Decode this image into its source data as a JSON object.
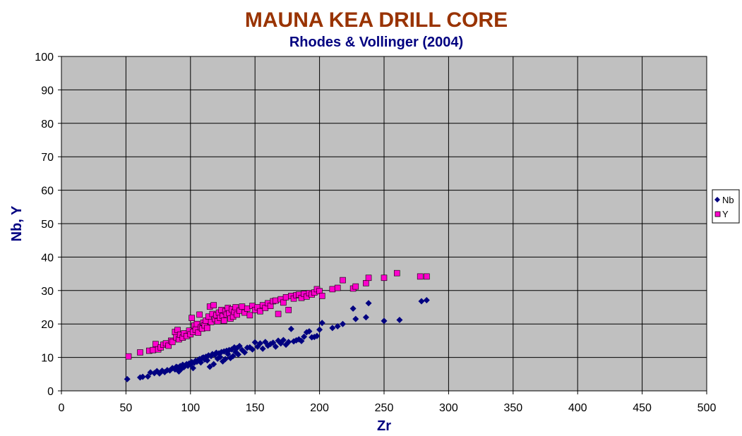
{
  "chart_data": {
    "type": "scatter",
    "title": "MAUNA KEA DRILL CORE",
    "subtitle": "Rhodes & Vollinger (2004)",
    "xlabel": "Zr",
    "ylabel": "Nb, Y",
    "xlim": [
      0,
      500
    ],
    "ylim": [
      0,
      100
    ],
    "x_ticks": [
      "0",
      "50",
      "100",
      "150",
      "200",
      "250",
      "300",
      "350",
      "400",
      "450",
      "500"
    ],
    "y_ticks": [
      "0",
      "10",
      "20",
      "30",
      "40",
      "50",
      "60",
      "70",
      "80",
      "90",
      "100"
    ],
    "grid": true,
    "legend_position": "right",
    "colors": {
      "title": "#993300",
      "subtitle": "#000080",
      "axis_title": "#000080",
      "plot_bg": "#c0c0c0",
      "grid": "#000000"
    },
    "series": [
      {
        "name": "Nb",
        "marker": "diamond",
        "color": "#000080",
        "points": [
          [
            51,
            3.5
          ],
          [
            61,
            4
          ],
          [
            63,
            4.2
          ],
          [
            67,
            4.3
          ],
          [
            69,
            5.5
          ],
          [
            72,
            5.3
          ],
          [
            74,
            5.9
          ],
          [
            76,
            5.2
          ],
          [
            78,
            6
          ],
          [
            80,
            5.6
          ],
          [
            82,
            6.2
          ],
          [
            84,
            6.1
          ],
          [
            86,
            6.8
          ],
          [
            88,
            6.4
          ],
          [
            89,
            7.2
          ],
          [
            90,
            7
          ],
          [
            91,
            5.8
          ],
          [
            92,
            7.4
          ],
          [
            93,
            6.6
          ],
          [
            94,
            7.8
          ],
          [
            95,
            7.1
          ],
          [
            96,
            7.6
          ],
          [
            97,
            8
          ],
          [
            98,
            7.5
          ],
          [
            99,
            8.2
          ],
          [
            100,
            7.9
          ],
          [
            101,
            8.6
          ],
          [
            102,
            6.8
          ],
          [
            103,
            8.4
          ],
          [
            104,
            9
          ],
          [
            105,
            8.7
          ],
          [
            106,
            9.2
          ],
          [
            107,
            9.5
          ],
          [
            108,
            8.5
          ],
          [
            109,
            9.8
          ],
          [
            110,
            10
          ],
          [
            111,
            9.4
          ],
          [
            112,
            10.2
          ],
          [
            113,
            9.1
          ],
          [
            114,
            10.6
          ],
          [
            115,
            7.2
          ],
          [
            116,
            10.4
          ],
          [
            117,
            11
          ],
          [
            118,
            8
          ],
          [
            119,
            10.8
          ],
          [
            120,
            11.4
          ],
          [
            121,
            9.6
          ],
          [
            122,
            11.2
          ],
          [
            123,
            10.1
          ],
          [
            124,
            11.6
          ],
          [
            125,
            8.8
          ],
          [
            126,
            11.8
          ],
          [
            127,
            9.5
          ],
          [
            128,
            12
          ],
          [
            129,
            11
          ],
          [
            130,
            12.2
          ],
          [
            131,
            9.8
          ],
          [
            132,
            12.4
          ],
          [
            133,
            10.4
          ],
          [
            134,
            13
          ],
          [
            135,
            11.6
          ],
          [
            136,
            12.8
          ],
          [
            137,
            10.9
          ],
          [
            138,
            13.4
          ],
          [
            140,
            12.2
          ],
          [
            142,
            11.5
          ],
          [
            144,
            12.9
          ],
          [
            146,
            13
          ],
          [
            148,
            12.4
          ],
          [
            150,
            14.5
          ],
          [
            152,
            13.2
          ],
          [
            154,
            14.2
          ],
          [
            156,
            12.6
          ],
          [
            158,
            14.6
          ],
          [
            160,
            13.5
          ],
          [
            162,
            14
          ],
          [
            164,
            14.4
          ],
          [
            166,
            13.2
          ],
          [
            168,
            15
          ],
          [
            170,
            14.2
          ],
          [
            172,
            15.2
          ],
          [
            174,
            13.8
          ],
          [
            176,
            14.6
          ],
          [
            178,
            18.5
          ],
          [
            180,
            14.8
          ],
          [
            182,
            15.1
          ],
          [
            184,
            15.4
          ],
          [
            186,
            14.9
          ],
          [
            188,
            16.2
          ],
          [
            190,
            17.5
          ],
          [
            192,
            17.8
          ],
          [
            194,
            16
          ],
          [
            196,
            16.1
          ],
          [
            198,
            16.4
          ],
          [
            200,
            18.3
          ],
          [
            202,
            20.3
          ],
          [
            210,
            18.8
          ],
          [
            214,
            19.3
          ],
          [
            218,
            20
          ],
          [
            226,
            24.6
          ],
          [
            228,
            21.5
          ],
          [
            236,
            22
          ],
          [
            238,
            26.2
          ],
          [
            250,
            20.9
          ],
          [
            262,
            21.2
          ],
          [
            279,
            26.8
          ],
          [
            283,
            27.1
          ]
        ]
      },
      {
        "name": "Y",
        "marker": "square",
        "color": "#ff00cc",
        "points": [
          [
            52,
            10.3
          ],
          [
            61,
            11.5
          ],
          [
            68,
            12
          ],
          [
            71,
            12.2
          ],
          [
            73,
            14
          ],
          [
            75,
            12.4
          ],
          [
            77,
            13
          ],
          [
            79,
            13.8
          ],
          [
            81,
            14.2
          ],
          [
            83,
            13.5
          ],
          [
            85,
            15
          ],
          [
            86,
            14.6
          ],
          [
            88,
            17.6
          ],
          [
            89,
            16
          ],
          [
            90,
            18.2
          ],
          [
            91,
            15.4
          ],
          [
            92,
            16.8
          ],
          [
            94,
            15.9
          ],
          [
            95,
            17.2
          ],
          [
            97,
            16.4
          ],
          [
            99,
            18
          ],
          [
            100,
            16.9
          ],
          [
            101,
            21.8
          ],
          [
            102,
            17.6
          ],
          [
            103,
            19.5
          ],
          [
            104,
            18.3
          ],
          [
            105,
            20
          ],
          [
            106,
            17.4
          ],
          [
            107,
            22.8
          ],
          [
            108,
            19
          ],
          [
            109,
            18.6
          ],
          [
            110,
            20.4
          ],
          [
            111,
            19.6
          ],
          [
            112,
            21
          ],
          [
            113,
            18.8
          ],
          [
            114,
            22.2
          ],
          [
            115,
            25.2
          ],
          [
            116,
            20.6
          ],
          [
            117,
            23
          ],
          [
            118,
            25.6
          ],
          [
            119,
            21.5
          ],
          [
            120,
            22.6
          ],
          [
            121,
            20.8
          ],
          [
            122,
            23.4
          ],
          [
            123,
            21.8
          ],
          [
            124,
            24.2
          ],
          [
            125,
            22.4
          ],
          [
            126,
            21
          ],
          [
            127,
            23.8
          ],
          [
            128,
            22.8
          ],
          [
            129,
            24.8
          ],
          [
            130,
            23.2
          ],
          [
            131,
            21.6
          ],
          [
            132,
            24.4
          ],
          [
            133,
            22.2
          ],
          [
            134,
            23.6
          ],
          [
            135,
            25
          ],
          [
            136,
            22.8
          ],
          [
            138,
            24
          ],
          [
            140,
            25.2
          ],
          [
            142,
            23.4
          ],
          [
            144,
            24.6
          ],
          [
            146,
            22.6
          ],
          [
            148,
            25.4
          ],
          [
            150,
            24.2
          ],
          [
            152,
            25
          ],
          [
            154,
            23.8
          ],
          [
            156,
            25.6
          ],
          [
            158,
            24.8
          ],
          [
            160,
            26.2
          ],
          [
            162,
            25.4
          ],
          [
            164,
            26.8
          ],
          [
            166,
            27
          ],
          [
            168,
            23
          ],
          [
            170,
            27.4
          ],
          [
            172,
            26.4
          ],
          [
            174,
            28
          ],
          [
            176,
            24.2
          ],
          [
            178,
            28.4
          ],
          [
            180,
            27.6
          ],
          [
            182,
            28.6
          ],
          [
            184,
            28.8
          ],
          [
            186,
            27.8
          ],
          [
            188,
            29
          ],
          [
            190,
            28.2
          ],
          [
            192,
            29.2
          ],
          [
            194,
            28.8
          ],
          [
            196,
            29.4
          ],
          [
            198,
            30.4
          ],
          [
            200,
            29.8
          ],
          [
            202,
            28.4
          ],
          [
            210,
            30.4
          ],
          [
            214,
            30.8
          ],
          [
            218,
            33.1
          ],
          [
            226,
            30.6
          ],
          [
            228,
            31.2
          ],
          [
            236,
            32.2
          ],
          [
            238,
            33.8
          ],
          [
            250,
            33.8
          ],
          [
            260,
            35.2
          ],
          [
            278,
            34.2
          ],
          [
            283,
            34.2
          ]
        ]
      }
    ]
  }
}
